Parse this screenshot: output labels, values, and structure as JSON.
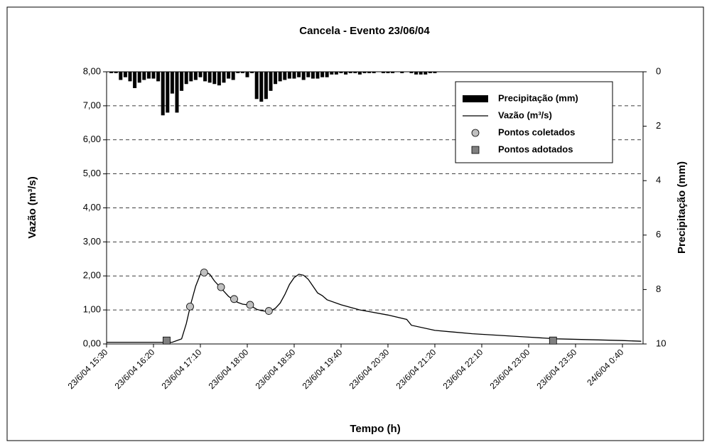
{
  "chart_data": {
    "type": "combo",
    "title": "Cancela - Evento 23/06/04",
    "xlabel": "Tempo (h)",
    "ylabel": "Vazão (m³/s)",
    "y2label": "Precipitação (mm)",
    "xlim": [
      "23/6/04 15:30",
      "24/6/04 1:02"
    ],
    "xticks": [
      "23/6/04 15:30",
      "23/6/04 16:20",
      "23/6/04 17:10",
      "23/6/04 18:00",
      "23/6/04 18:50",
      "23/6/04 19:40",
      "23/6/04 20:30",
      "23/6/04 21:20",
      "23/6/04 22:10",
      "23/6/04 23:00",
      "23/6/04 23:50",
      "24/6/04 0:40"
    ],
    "ylim": [
      0,
      8
    ],
    "yticks": [
      {
        "value": 0,
        "label": "0,00"
      },
      {
        "value": 1,
        "label": "1,00"
      },
      {
        "value": 2,
        "label": "2,00"
      },
      {
        "value": 3,
        "label": "3,00"
      },
      {
        "value": 4,
        "label": "4,00"
      },
      {
        "value": 5,
        "label": "5,00"
      },
      {
        "value": 6,
        "label": "6,00"
      },
      {
        "value": 7,
        "label": "7,00"
      },
      {
        "value": 8,
        "label": "8,00"
      }
    ],
    "y2lim": [
      0,
      10
    ],
    "y2inverted": true,
    "y2ticks": [
      0,
      2,
      4,
      6,
      8,
      10
    ],
    "grid": true,
    "legend": "upper right",
    "series": [
      {
        "name": "Precipitação (mm)",
        "type": "bar",
        "axis": "y2",
        "color": "#000000",
        "x": [
          "23/6/04 15:35",
          "23/6/04 15:40",
          "23/6/04 15:45",
          "23/6/04 15:50",
          "23/6/04 15:55",
          "23/6/04 16:00",
          "23/6/04 16:05",
          "23/6/04 16:10",
          "23/6/04 16:15",
          "23/6/04 16:20",
          "23/6/04 16:25",
          "23/6/04 16:30",
          "23/6/04 16:35",
          "23/6/04 16:40",
          "23/6/04 16:45",
          "23/6/04 16:50",
          "23/6/04 16:55",
          "23/6/04 17:00",
          "23/6/04 17:05",
          "23/6/04 17:10",
          "23/6/04 17:15",
          "23/6/04 17:20",
          "23/6/04 17:25",
          "23/6/04 17:30",
          "23/6/04 17:35",
          "23/6/04 17:40",
          "23/6/04 17:45",
          "23/6/04 17:50",
          "23/6/04 17:55",
          "23/6/04 18:00",
          "23/6/04 18:05",
          "23/6/04 18:10",
          "23/6/04 18:15",
          "23/6/04 18:20",
          "23/6/04 18:25",
          "23/6/04 18:30",
          "23/6/04 18:35",
          "23/6/04 18:40",
          "23/6/04 18:45",
          "23/6/04 18:50",
          "23/6/04 18:55",
          "23/6/04 19:00",
          "23/6/04 19:05",
          "23/6/04 19:10",
          "23/6/04 19:15",
          "23/6/04 19:20",
          "23/6/04 19:25",
          "23/6/04 19:30",
          "23/6/04 19:35",
          "23/6/04 19:40",
          "23/6/04 19:45",
          "23/6/04 19:50",
          "23/6/04 19:55",
          "23/6/04 20:00",
          "23/6/04 20:05",
          "23/6/04 20:10",
          "23/6/04 20:15",
          "23/6/04 20:20",
          "23/6/04 20:25",
          "23/6/04 20:30",
          "23/6/04 20:35",
          "23/6/04 20:40",
          "23/6/04 20:45",
          "23/6/04 20:50",
          "23/6/04 20:55",
          "23/6/04 21:00",
          "23/6/04 21:05",
          "23/6/04 21:10",
          "23/6/04 21:15",
          "23/6/04 21:20"
        ],
        "values": [
          0.05,
          0.05,
          0.3,
          0.2,
          0.35,
          0.6,
          0.4,
          0.3,
          0.25,
          0.25,
          0.35,
          1.6,
          1.5,
          0.8,
          1.5,
          0.7,
          0.45,
          0.35,
          0.3,
          0.2,
          0.35,
          0.4,
          0.45,
          0.5,
          0.4,
          0.25,
          0.3,
          0.05,
          0.05,
          0.2,
          0.05,
          1.0,
          1.1,
          1.0,
          0.7,
          0.45,
          0.35,
          0.3,
          0.25,
          0.25,
          0.2,
          0.3,
          0.2,
          0.25,
          0.25,
          0.2,
          0.2,
          0.1,
          0.1,
          0.05,
          0.1,
          0.05,
          0.05,
          0.1,
          0.05,
          0.05,
          0.05,
          0,
          0.05,
          0.05,
          0.05,
          0,
          0.05,
          0,
          0.05,
          0.1,
          0.1,
          0.1,
          0.05,
          0.05
        ]
      },
      {
        "name": "Vazão (m³/s)",
        "type": "line",
        "color": "#000000",
        "x": [
          "23/6/04 15:30",
          "23/6/04 16:40",
          "23/6/04 16:50",
          "23/6/04 16:55",
          "23/6/04 17:00",
          "23/6/04 17:05",
          "23/6/04 17:10",
          "23/6/04 17:15",
          "23/6/04 17:20",
          "23/6/04 17:25",
          "23/6/04 17:30",
          "23/6/04 17:35",
          "23/6/04 17:40",
          "23/6/04 17:45",
          "23/6/04 17:50",
          "23/6/04 17:55",
          "23/6/04 18:00",
          "23/6/04 18:05",
          "23/6/04 18:10",
          "23/6/04 18:15",
          "23/6/04 18:20",
          "23/6/04 18:25",
          "23/6/04 18:30",
          "23/6/04 18:35",
          "23/6/04 18:40",
          "23/6/04 18:45",
          "23/6/04 18:50",
          "23/6/04 18:55",
          "23/6/04 19:00",
          "23/6/04 19:05",
          "23/6/04 19:10",
          "23/6/04 19:15",
          "23/6/04 19:20",
          "23/6/04 19:25",
          "23/6/04 19:40",
          "23/6/04 20:00",
          "23/6/04 20:30",
          "23/6/04 20:50",
          "23/6/04 20:55",
          "23/6/04 21:20",
          "23/6/04 22:00",
          "23/6/04 22:30",
          "23/6/04 23:00",
          "23/6/04 23:30",
          "24/6/04 0:00",
          "24/6/04 0:40",
          "24/6/04 1:00"
        ],
        "values": [
          0.05,
          0.05,
          0.15,
          0.6,
          1.2,
          1.7,
          2.05,
          2.12,
          2.05,
          1.85,
          1.7,
          1.55,
          1.4,
          1.3,
          1.22,
          1.17,
          1.15,
          1.1,
          1.02,
          0.98,
          0.96,
          0.97,
          1.05,
          1.2,
          1.45,
          1.75,
          1.95,
          2.05,
          2.02,
          1.9,
          1.7,
          1.5,
          1.42,
          1.3,
          1.15,
          1.0,
          0.85,
          0.72,
          0.55,
          0.4,
          0.3,
          0.25,
          0.2,
          0.15,
          0.13,
          0.1,
          0.08
        ]
      },
      {
        "name": "Pontos coletados",
        "type": "circle",
        "color": "#c0c0c0",
        "x": [
          "23/6/04 16:59",
          "23/6/04 17:14",
          "23/6/04 17:32",
          "23/6/04 17:46",
          "23/6/04 18:03",
          "23/6/04 18:23"
        ],
        "values": [
          1.1,
          2.1,
          1.67,
          1.32,
          1.15,
          0.97
        ]
      },
      {
        "name": "Pontos adotados",
        "type": "square",
        "color": "#808080",
        "x": [
          "23/6/04 16:34",
          "23/6/04 23:26"
        ],
        "values": [
          0.1,
          0.1
        ]
      }
    ]
  }
}
